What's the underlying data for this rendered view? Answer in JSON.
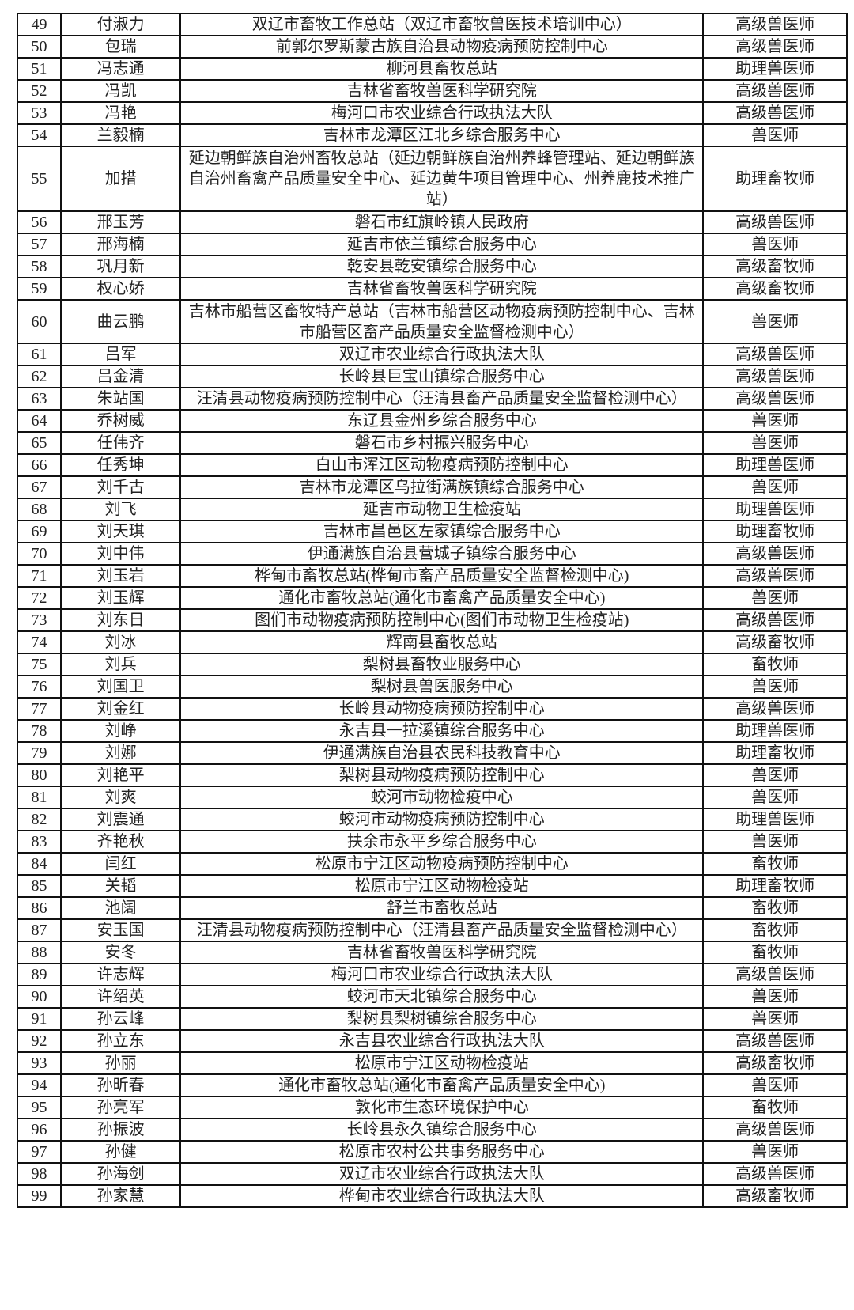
{
  "rows": [
    [
      "49",
      "付淑力",
      "双辽市畜牧工作总站（双辽市畜牧兽医技术培训中心）",
      "高级兽医师"
    ],
    [
      "50",
      "包瑞",
      "前郭尔罗斯蒙古族自治县动物疫病预防控制中心",
      "高级兽医师"
    ],
    [
      "51",
      "冯志通",
      "柳河县畜牧总站",
      "助理兽医师"
    ],
    [
      "52",
      "冯凯",
      "吉林省畜牧兽医科学研究院",
      "高级兽医师"
    ],
    [
      "53",
      "冯艳",
      "梅河口市农业综合行政执法大队",
      "高级兽医师"
    ],
    [
      "54",
      "兰毅楠",
      "吉林市龙潭区江北乡综合服务中心",
      "兽医师"
    ],
    [
      "55",
      "加措",
      "延边朝鲜族自治州畜牧总站（延边朝鲜族自治州养蜂管理站、延边朝鲜族自治州畜禽产品质量安全中心、延边黄牛项目管理中心、州养鹿技术推广站）",
      "助理畜牧师"
    ],
    [
      "56",
      "邢玉芳",
      "磐石市红旗岭镇人民政府",
      "高级兽医师"
    ],
    [
      "57",
      "邢海楠",
      "延吉市依兰镇综合服务中心",
      "兽医师"
    ],
    [
      "58",
      "巩月新",
      "乾安县乾安镇综合服务中心",
      "高级畜牧师"
    ],
    [
      "59",
      "权心娇",
      "吉林省畜牧兽医科学研究院",
      "高级畜牧师"
    ],
    [
      "60",
      "曲云鹏",
      "吉林市船营区畜牧特产总站（吉林市船营区动物疫病预防控制中心、吉林市船营区畜产品质量安全监督检测中心）",
      "兽医师"
    ],
    [
      "61",
      "吕军",
      "双辽市农业综合行政执法大队",
      "高级兽医师"
    ],
    [
      "62",
      "吕金清",
      "长岭县巨宝山镇综合服务中心",
      "高级兽医师"
    ],
    [
      "63",
      "朱站国",
      "汪清县动物疫病预防控制中心（汪清县畜产品质量安全监督检测中心）",
      "高级兽医师"
    ],
    [
      "64",
      "乔树威",
      "东辽县金州乡综合服务中心",
      "兽医师"
    ],
    [
      "65",
      "任伟齐",
      "磐石市乡村振兴服务中心",
      "兽医师"
    ],
    [
      "66",
      "任秀坤",
      "白山市浑江区动物疫病预防控制中心",
      "助理兽医师"
    ],
    [
      "67",
      "刘千古",
      "吉林市龙潭区乌拉街满族镇综合服务中心",
      "兽医师"
    ],
    [
      "68",
      "刘飞",
      "延吉市动物卫生检疫站",
      "助理兽医师"
    ],
    [
      "69",
      "刘天琪",
      "吉林市昌邑区左家镇综合服务中心",
      "助理畜牧师"
    ],
    [
      "70",
      "刘中伟",
      "伊通满族自治县营城子镇综合服务中心",
      "高级兽医师"
    ],
    [
      "71",
      "刘玉岩",
      "桦甸市畜牧总站(桦甸市畜产品质量安全监督检测中心)",
      "高级兽医师"
    ],
    [
      "72",
      "刘玉辉",
      "通化市畜牧总站(通化市畜禽产品质量安全中心)",
      "兽医师"
    ],
    [
      "73",
      "刘东日",
      "图们市动物疫病预防控制中心(图们市动物卫生检疫站)",
      "高级兽医师"
    ],
    [
      "74",
      "刘冰",
      "辉南县畜牧总站",
      "高级畜牧师"
    ],
    [
      "75",
      "刘兵",
      "梨树县畜牧业服务中心",
      "畜牧师"
    ],
    [
      "76",
      "刘国卫",
      "梨树县兽医服务中心",
      "兽医师"
    ],
    [
      "77",
      "刘金红",
      "长岭县动物疫病预防控制中心",
      "高级兽医师"
    ],
    [
      "78",
      "刘峥",
      "永吉县一拉溪镇综合服务中心",
      "助理兽医师"
    ],
    [
      "79",
      "刘娜",
      "伊通满族自治县农民科技教育中心",
      "助理畜牧师"
    ],
    [
      "80",
      "刘艳平",
      "梨树县动物疫病预防控制中心",
      "兽医师"
    ],
    [
      "81",
      "刘爽",
      "蛟河市动物检疫中心",
      "兽医师"
    ],
    [
      "82",
      "刘震通",
      "蛟河市动物疫病预防控制中心",
      "助理兽医师"
    ],
    [
      "83",
      "齐艳秋",
      "扶余市永平乡综合服务中心",
      "兽医师"
    ],
    [
      "84",
      "闫红",
      "松原市宁江区动物疫病预防控制中心",
      "畜牧师"
    ],
    [
      "85",
      "关韬",
      "松原市宁江区动物检疫站",
      "助理畜牧师"
    ],
    [
      "86",
      "池阔",
      "舒兰市畜牧总站",
      "畜牧师"
    ],
    [
      "87",
      "安玉国",
      "汪清县动物疫病预防控制中心（汪清县畜产品质量安全监督检测中心）",
      "畜牧师"
    ],
    [
      "88",
      "安冬",
      "吉林省畜牧兽医科学研究院",
      "畜牧师"
    ],
    [
      "89",
      "许志辉",
      "梅河口市农业综合行政执法大队",
      "高级兽医师"
    ],
    [
      "90",
      "许绍英",
      "蛟河市天北镇综合服务中心",
      "兽医师"
    ],
    [
      "91",
      "孙云峰",
      "梨树县梨树镇综合服务中心",
      "兽医师"
    ],
    [
      "92",
      "孙立东",
      "永吉县农业综合行政执法大队",
      "高级兽医师"
    ],
    [
      "93",
      "孙丽",
      "松原市宁江区动物检疫站",
      "高级畜牧师"
    ],
    [
      "94",
      "孙昕春",
      "通化市畜牧总站(通化市畜禽产品质量安全中心)",
      "兽医师"
    ],
    [
      "95",
      "孙亮军",
      "敦化市生态环境保护中心",
      "畜牧师"
    ],
    [
      "96",
      "孙振波",
      "长岭县永久镇综合服务中心",
      "高级兽医师"
    ],
    [
      "97",
      "孙健",
      "松原市农村公共事务服务中心",
      "兽医师"
    ],
    [
      "98",
      "孙海剑",
      "双辽市农业综合行政执法大队",
      "高级兽医师"
    ],
    [
      "99",
      "孙家慧",
      "桦甸市农业综合行政执法大队",
      "高级畜牧师"
    ]
  ]
}
